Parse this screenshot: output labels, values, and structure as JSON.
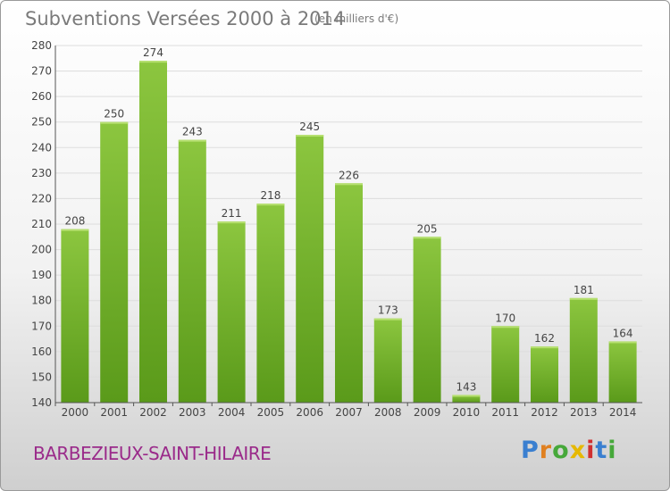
{
  "title": "Subventions Versées 2000 à 2014",
  "subtitle": "(en milliers d'€)",
  "commune": "BARBEZIEUX-SAINT-HILAIRE",
  "logo": "Proxiti",
  "colors": {
    "bar_top": "#8cc63f",
    "bar_bottom": "#5a9a1a",
    "grid": "#dddddd",
    "axis": "#555555"
  },
  "chart_data": {
    "type": "bar",
    "title": "Subventions Versées 2000 à 2014",
    "subtitle": "(en milliers d'€)",
    "xlabel": "",
    "ylabel": "",
    "categories": [
      "2000",
      "2001",
      "2002",
      "2003",
      "2004",
      "2005",
      "2006",
      "2007",
      "2008",
      "2009",
      "2010",
      "2011",
      "2012",
      "2013",
      "2014"
    ],
    "values": [
      208,
      250,
      274,
      243,
      211,
      218,
      245,
      226,
      173,
      205,
      143,
      170,
      162,
      181,
      164
    ],
    "ylim": [
      140,
      280
    ],
    "yticks": [
      140,
      150,
      160,
      170,
      180,
      190,
      200,
      210,
      220,
      230,
      240,
      250,
      260,
      270,
      280
    ],
    "grid": true,
    "legend": "none"
  }
}
